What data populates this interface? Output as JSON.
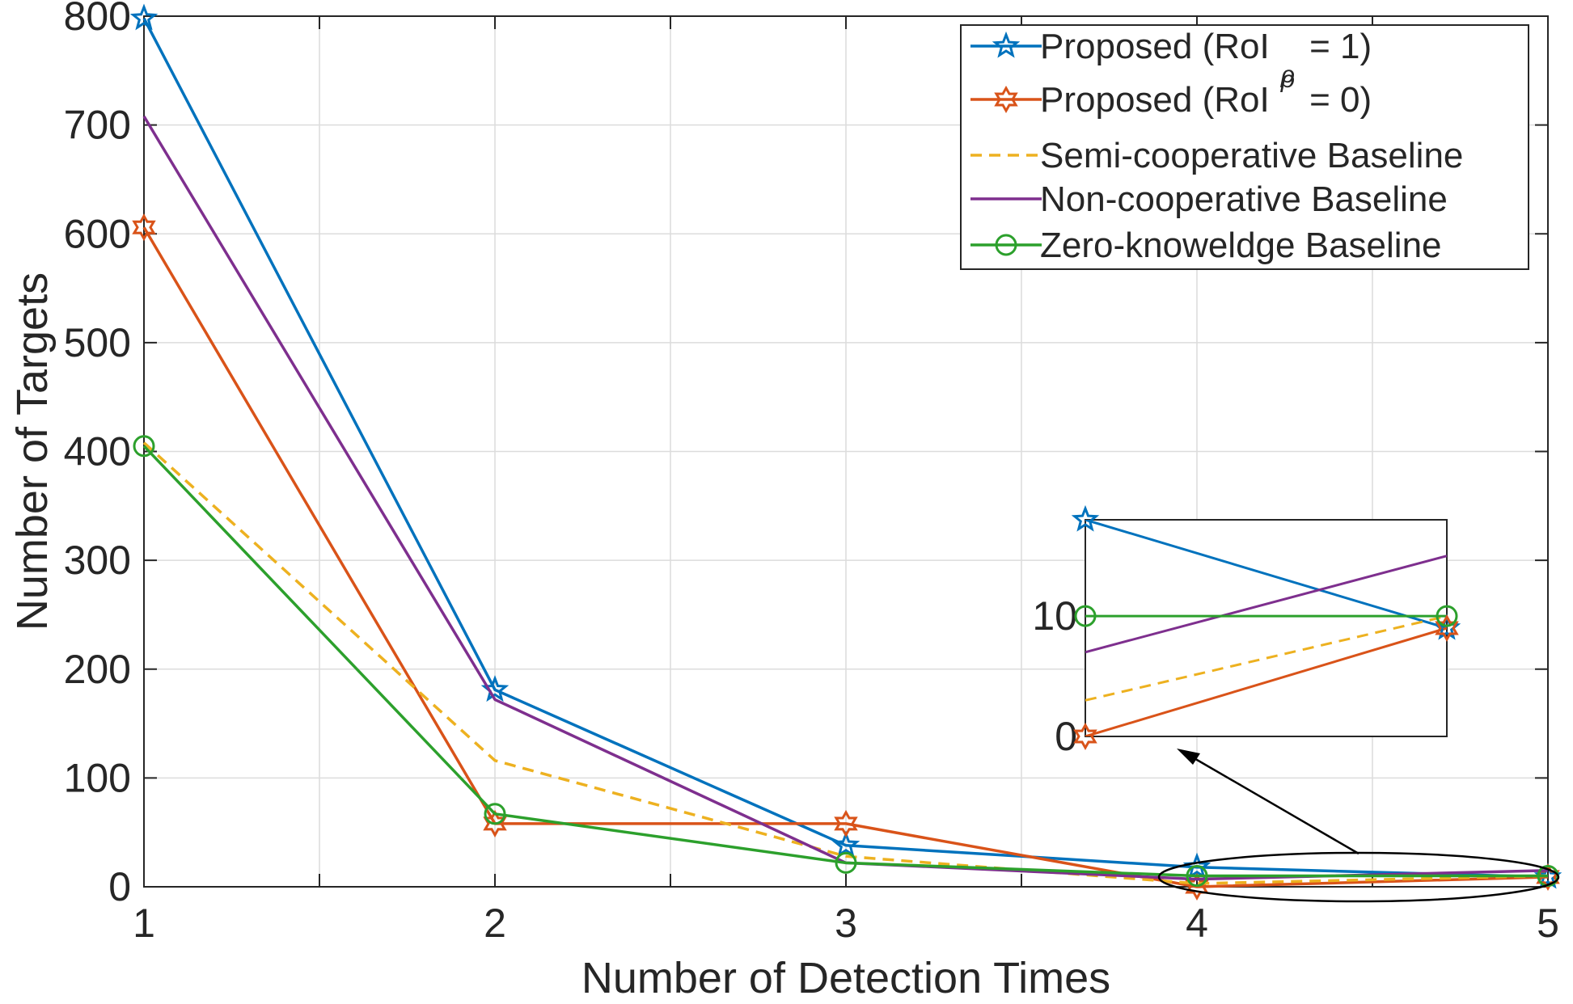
{
  "chart_data": {
    "type": "line",
    "title": "",
    "xlabel": "Number of Detection Times",
    "ylabel": "Number of Targets",
    "x": [
      1,
      2,
      3,
      4,
      5
    ],
    "xlim": [
      1,
      5
    ],
    "ylim": [
      0,
      800
    ],
    "xticks": [
      1,
      2,
      3,
      4,
      5
    ],
    "yticks": [
      0,
      100,
      200,
      300,
      400,
      500,
      600,
      700,
      800
    ],
    "grid": true,
    "legend_position": "top-right",
    "series": [
      {
        "name": "Proposed (RoI_rho = 1)",
        "label_main": "Proposed (RoI",
        "label_sub": "ρ",
        "label_tail": " = 1)",
        "color": "#0072BD",
        "marker": "star",
        "dash": "solid",
        "values": [
          798,
          181,
          38,
          18,
          9
        ]
      },
      {
        "name": "Proposed (RoI_rho = 0)",
        "label_main": "Proposed (RoI",
        "label_sub": "ρ",
        "label_tail": " = 0)",
        "color": "#D95319",
        "marker": "hexagram",
        "dash": "solid",
        "values": [
          606,
          58,
          58,
          0,
          9
        ]
      },
      {
        "name": "Semi-cooperative Baseline",
        "label_main": "Semi-cooperative Baseline",
        "label_sub": "",
        "label_tail": "",
        "color": "#EDB120",
        "marker": "none",
        "dash": "dashed",
        "values": [
          408,
          116,
          28,
          3,
          10
        ]
      },
      {
        "name": "Non-cooperative Baseline",
        "label_main": "Non-cooperative Baseline",
        "label_sub": "",
        "label_tail": "",
        "color": "#7E2F8E",
        "marker": "none",
        "dash": "solid",
        "values": [
          708,
          172,
          22,
          7,
          15
        ]
      },
      {
        "name": "Zero-knoweldge Baseline",
        "label_main": "Zero-knoweldge Baseline",
        "label_sub": "",
        "label_tail": "",
        "color": "#2CA02C",
        "marker": "circle",
        "dash": "solid",
        "values": [
          405,
          67,
          22,
          10,
          10
        ]
      }
    ],
    "inset": {
      "xlim": [
        4,
        5
      ],
      "ylim": [
        0,
        18
      ],
      "yticks": [
        0,
        10
      ],
      "annotation": "zoom of x = 4 to 5"
    }
  }
}
